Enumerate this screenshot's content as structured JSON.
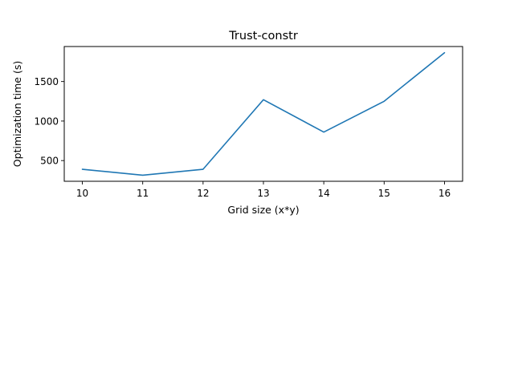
{
  "chart_data": {
    "type": "line",
    "title": "Trust-constr",
    "xlabel": "Grid size (x*y)",
    "ylabel": "Optimization time (s)",
    "x": [
      10,
      11,
      12,
      13,
      14,
      15,
      16
    ],
    "series": [
      {
        "values": [
          390,
          315,
          390,
          1270,
          860,
          1250,
          1865
        ],
        "color": "#1f77b4"
      }
    ],
    "xticks": [
      10,
      11,
      12,
      13,
      14,
      15,
      16
    ],
    "yticks": [
      500,
      1000,
      1500
    ],
    "xlim": [
      9.7,
      16.3
    ],
    "ylim": [
      238,
      1943
    ],
    "grid": false,
    "legend": "none"
  }
}
